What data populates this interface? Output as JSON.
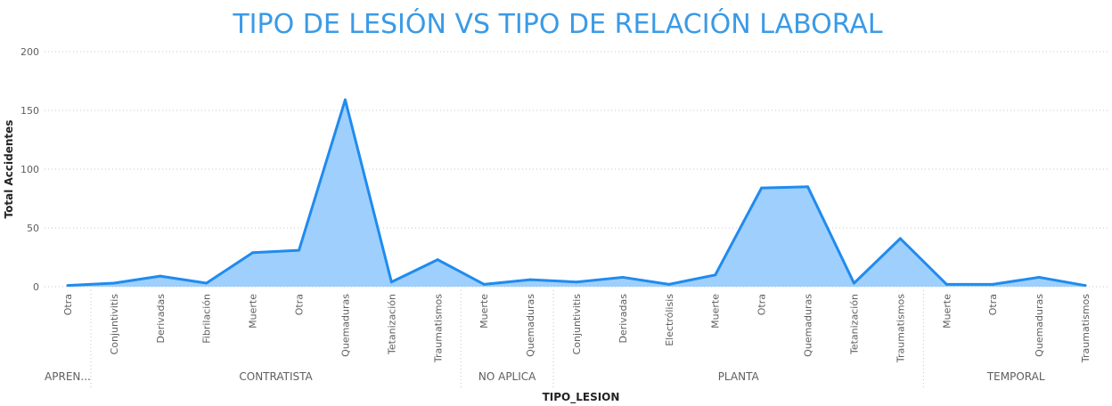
{
  "chart_data": {
    "type": "area",
    "title": "TIPO DE LESIÓN VS TIPO DE RELACIÓN LABORAL",
    "xlabel": "TIPO_LESION",
    "ylabel": "Total Accidentes",
    "ylim": [
      0,
      200
    ],
    "yticks": [
      "0",
      "50",
      "100",
      "150",
      "200"
    ],
    "grid": true,
    "colors": {
      "line": "#1f8bef",
      "fill": "#9fcffc",
      "title": "#3a9ae6"
    },
    "groups": [
      {
        "label": "APREN...",
        "categories": [
          "Otra"
        ],
        "values": [
          1
        ]
      },
      {
        "label": "CONTRATISTA",
        "categories": [
          "Conjuntivitis",
          "Derivadas",
          "Fibrilación",
          "Muerte",
          "Otra",
          "Quemaduras",
          "Tetanización",
          "Traumatismos"
        ],
        "values": [
          3,
          9,
          3,
          29,
          31,
          159,
          4,
          23
        ]
      },
      {
        "label": "NO APLICA",
        "categories": [
          "Muerte",
          "Quemaduras"
        ],
        "values": [
          2,
          6
        ]
      },
      {
        "label": "PLANTA",
        "categories": [
          "Conjuntivitis",
          "Derivadas",
          "Electrólisis",
          "Muerte",
          "Otra",
          "Quemaduras",
          "Tetanización",
          "Traumatismos"
        ],
        "values": [
          4,
          8,
          2,
          10,
          84,
          85,
          3,
          41
        ]
      },
      {
        "label": "TEMPORAL",
        "categories": [
          "Muerte",
          "Otra",
          "Quemaduras",
          "Traumatismos"
        ],
        "values": [
          2,
          2,
          8,
          1
        ]
      }
    ]
  }
}
